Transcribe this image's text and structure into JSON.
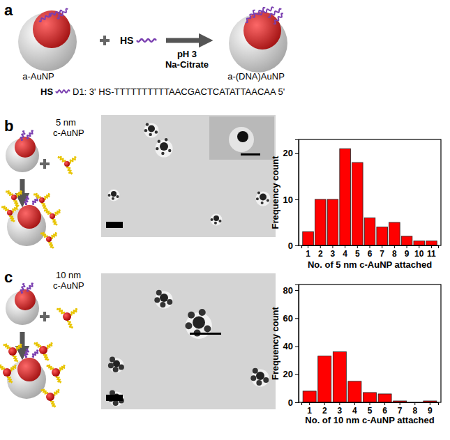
{
  "panels": [
    "a",
    "b",
    "c"
  ],
  "scheme_a": {
    "reactant": "a-AuNP",
    "reagent": "HS",
    "conditions": [
      "pH 3",
      "Na-Citrate"
    ],
    "product": "a-(DNA)AuNP",
    "sequence_prefix": "HS",
    "sequence": "D1: 3' HS-TTTTTTTTTTAACGACTCATATTAACAA 5'"
  },
  "scheme_b": [
    "5 nm",
    "c-AuNP"
  ],
  "scheme_c": [
    "10 nm",
    "c-AuNP"
  ],
  "chart_data": [
    {
      "type": "bar",
      "x_label": "No. of 5 nm c-AuNP attached",
      "y_label": "Frequency count",
      "categories": [
        "1",
        "2",
        "3",
        "4",
        "5",
        "6",
        "7",
        "8",
        "9",
        "10",
        "11"
      ],
      "values": [
        3,
        10,
        10,
        21,
        18,
        6,
        4,
        5,
        2,
        1,
        1
      ],
      "color": "#ff0000",
      "ylim": [
        0,
        23
      ],
      "yticks": [
        0,
        10,
        20
      ]
    },
    {
      "type": "bar",
      "x_label": "No. of 10 nm c-AuNP attached",
      "y_label": "Frequency count",
      "categories": [
        "1",
        "2",
        "3",
        "4",
        "5",
        "6",
        "7",
        "8",
        "9"
      ],
      "values": [
        8,
        33,
        36,
        15,
        7,
        6,
        1,
        0,
        1
      ],
      "color": "#ff0000",
      "ylim": [
        0,
        84
      ],
      "yticks": [
        0,
        20,
        40,
        60,
        80
      ]
    }
  ]
}
